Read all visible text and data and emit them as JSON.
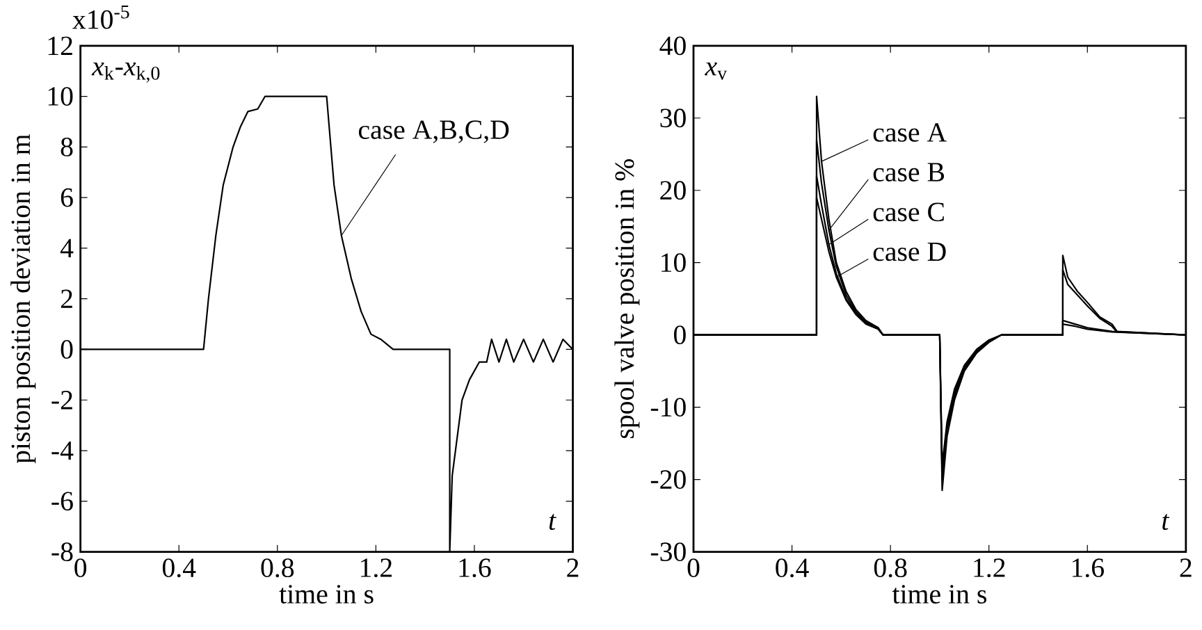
{
  "chart_data": [
    {
      "type": "line",
      "xlabel": "time in s",
      "ylabel": "piston position deviation in m",
      "xlim": [
        0,
        2
      ],
      "xticks": [
        0,
        0.4,
        0.8,
        1.2,
        1.6,
        2
      ],
      "ylim": [
        -8,
        12
      ],
      "yticks": [
        -8,
        -6,
        -4,
        -2,
        0,
        2,
        4,
        6,
        8,
        10,
        12
      ],
      "annotations": [
        "x10$^{-5}$",
        "*x*$_{k}$-*x*$_{k,0}$",
        "*t*"
      ],
      "series": [
        {
          "name": "case A,B,C,D",
          "color": "#000000",
          "x": [
            0,
            0.5,
            0.52,
            0.55,
            0.58,
            0.62,
            0.65,
            0.68,
            0.72,
            0.75,
            1.0,
            1.03,
            1.06,
            1.1,
            1.14,
            1.18,
            1.22,
            1.27,
            1.5,
            1.5,
            1.51,
            1.53,
            1.55,
            1.58,
            1.62,
            1.65,
            1.67,
            1.7,
            1.73,
            1.76,
            1.8,
            1.84,
            1.88,
            1.92,
            1.96,
            2
          ],
          "values": [
            0,
            0,
            2,
            4.5,
            6.5,
            8,
            8.8,
            9.4,
            9.5,
            10,
            10,
            6.5,
            4.5,
            2.8,
            1.5,
            0.6,
            0.4,
            0,
            0,
            -8,
            -5,
            -3.5,
            -2,
            -1.2,
            -0.5,
            -0.5,
            0.4,
            -0.5,
            0.4,
            -0.5,
            0.4,
            -0.5,
            0.4,
            -0.5,
            0.4,
            0
          ]
        }
      ]
    },
    {
      "type": "line",
      "xlabel": "time in s",
      "ylabel": "spool valve position in %",
      "xlim": [
        0,
        2
      ],
      "xticks": [
        0,
        0.4,
        0.8,
        1.2,
        1.6,
        2
      ],
      "ylim": [
        -30,
        40
      ],
      "yticks": [
        -30,
        -20,
        -10,
        0,
        10,
        20,
        30,
        40
      ],
      "annotations": [
        "*x*$_{v}$",
        "*t*"
      ],
      "legend": "top",
      "series": [
        {
          "name": "case A",
          "color": "#000000",
          "x": [
            0,
            0.5,
            0.5,
            0.52,
            0.55,
            0.58,
            0.62,
            0.66,
            0.7,
            0.75,
            0.77,
            1.0,
            1.01,
            1.03,
            1.06,
            1.1,
            1.15,
            1.2,
            1.25,
            1.5,
            1.5,
            1.52,
            1.56,
            1.6,
            1.65,
            1.7,
            1.72,
            2
          ],
          "values": [
            0,
            0,
            33,
            24,
            16,
            10,
            6,
            3.5,
            2,
            1,
            0,
            0,
            -21.5,
            -14,
            -9,
            -5,
            -2.5,
            -1,
            0,
            0,
            11,
            8,
            6,
            4.5,
            2.5,
            1.5,
            0.5,
            0
          ]
        },
        {
          "name": "case B",
          "color": "#000000",
          "x": [
            0,
            0.5,
            0.5,
            0.52,
            0.55,
            0.58,
            0.62,
            0.66,
            0.7,
            0.75,
            0.77,
            1.0,
            1.01,
            1.03,
            1.06,
            1.1,
            1.15,
            1.2,
            1.25,
            1.5,
            1.5,
            1.52,
            1.56,
            1.6,
            1.65,
            1.7,
            1.72,
            2
          ],
          "values": [
            0,
            0,
            27,
            21,
            14.5,
            9.5,
            5.5,
            3.2,
            1.8,
            1,
            0,
            0,
            -20,
            -13,
            -8.5,
            -4.8,
            -2.4,
            -1,
            0,
            0,
            9,
            7,
            5.5,
            4,
            2.3,
            1.2,
            0.4,
            0
          ]
        },
        {
          "name": "case C",
          "color": "#000000",
          "x": [
            0,
            0.5,
            0.5,
            0.52,
            0.55,
            0.58,
            0.62,
            0.66,
            0.7,
            0.75,
            0.77,
            1.0,
            1.01,
            1.03,
            1.06,
            1.1,
            1.15,
            1.2,
            1.25,
            1.5,
            1.5,
            1.55,
            1.6,
            1.7,
            2
          ],
          "values": [
            0,
            0,
            22,
            18,
            12.5,
            8.5,
            5,
            3,
            1.6,
            0.8,
            0,
            0,
            -19,
            -12.5,
            -8,
            -4.5,
            -2.2,
            -0.8,
            0,
            0,
            2,
            1.5,
            1,
            0.5,
            0
          ]
        },
        {
          "name": "case D",
          "color": "#000000",
          "x": [
            0,
            0.5,
            0.5,
            0.52,
            0.55,
            0.58,
            0.62,
            0.66,
            0.7,
            0.75,
            0.77,
            1.0,
            1.01,
            1.03,
            1.06,
            1.1,
            1.15,
            1.2,
            1.25,
            1.5,
            1.5,
            1.55,
            1.6,
            1.7,
            2
          ],
          "values": [
            0,
            0,
            19,
            16,
            11.5,
            8,
            4.8,
            2.8,
            1.5,
            0.8,
            0,
            0,
            -18,
            -12,
            -7.5,
            -4.2,
            -2,
            -0.7,
            0,
            0,
            1.5,
            1.2,
            0.8,
            0.4,
            0
          ]
        }
      ]
    }
  ]
}
